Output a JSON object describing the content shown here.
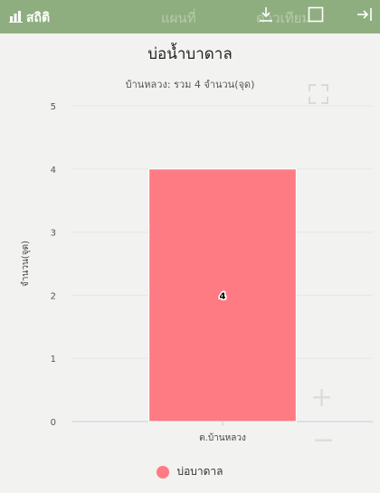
{
  "header": {
    "title": "สถิติ",
    "ghost_text_1": "แผนที่",
    "ghost_text_2": "ดาวเทียม",
    "icons": [
      "bar-chart-icon",
      "download-icon",
      "square-icon",
      "collapse-right-icon"
    ]
  },
  "colors": {
    "header_bg": "#8fae7f",
    "bar": "#ff7b84",
    "grid": "#e6e6e6",
    "axis": "#c8cce6"
  },
  "chart_data": {
    "type": "bar",
    "title": "บ่อน้ำบาดาล",
    "subtitle": "บ้านหลวง: รวม 4 จำนวน(จุด)",
    "xlabel": "",
    "ylabel": "จำนวน(จุด)",
    "categories": [
      "ต.บ้านหลวง"
    ],
    "series": [
      {
        "name": "บ่อบาดาล",
        "values": [
          4
        ]
      }
    ],
    "data_labels": [
      "4"
    ],
    "ylim": [
      0,
      5
    ],
    "yticks": [
      0,
      1,
      2,
      3,
      4,
      5
    ],
    "grid": true,
    "legend_position": "bottom-center"
  }
}
